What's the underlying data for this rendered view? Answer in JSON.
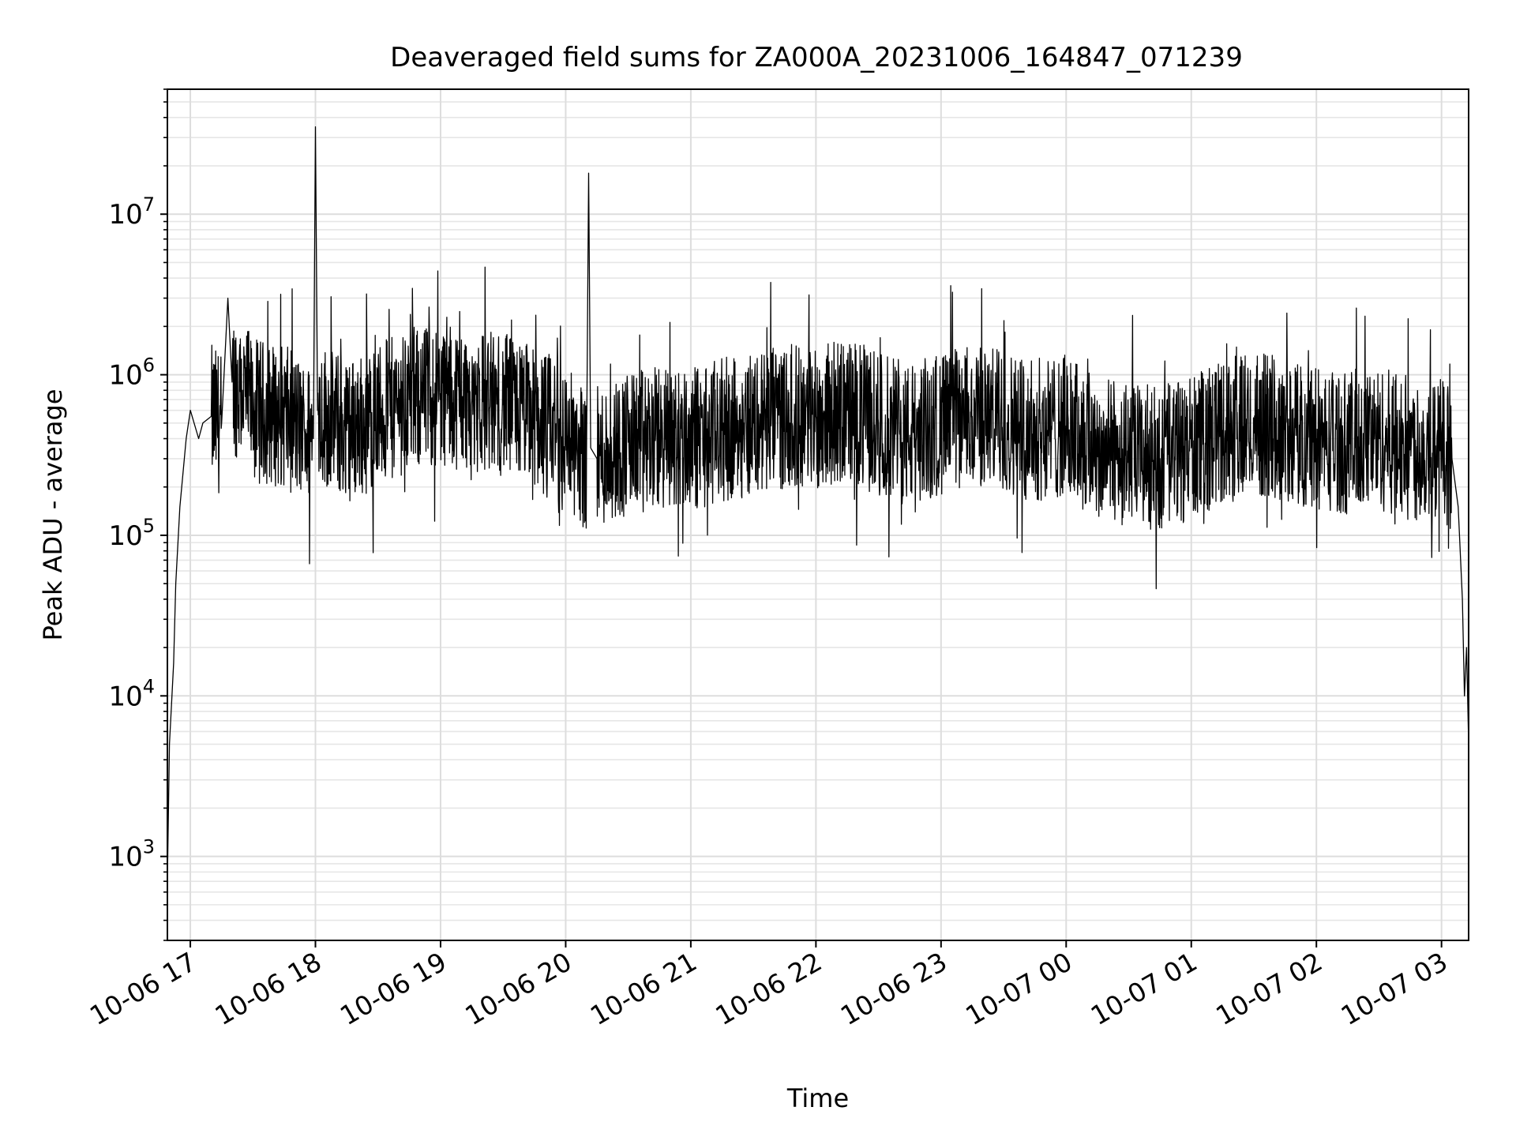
{
  "chart_data": {
    "type": "line",
    "title": "Deaveraged field sums for ZA000A_20231006_164847_071239",
    "xlabel": "Time",
    "ylabel": "Peak ADU - average",
    "yscale": "log",
    "ylim": [
      300,
      60000000
    ],
    "xlim": [
      "2023-10-06 16:49",
      "2023-10-07 03:13"
    ],
    "grid": "major and minor",
    "line_color": "#000000",
    "x_ticks": [
      {
        "label": "10-06 17",
        "time": "2023-10-06 17:00"
      },
      {
        "label": "10-06 18",
        "time": "2023-10-06 18:00"
      },
      {
        "label": "10-06 19",
        "time": "2023-10-06 19:00"
      },
      {
        "label": "10-06 20",
        "time": "2023-10-06 20:00"
      },
      {
        "label": "10-06 21",
        "time": "2023-10-06 21:00"
      },
      {
        "label": "10-06 22",
        "time": "2023-10-06 22:00"
      },
      {
        "label": "10-06 23",
        "time": "2023-10-06 23:00"
      },
      {
        "label": "10-07 00",
        "time": "2023-10-07 00:00"
      },
      {
        "label": "10-07 01",
        "time": "2023-10-07 01:00"
      },
      {
        "label": "10-07 02",
        "time": "2023-10-07 02:00"
      },
      {
        "label": "10-07 03",
        "time": "2023-10-07 03:00"
      }
    ],
    "y_ticks": [
      {
        "base": "10",
        "exp": "3",
        "value": 1000
      },
      {
        "base": "10",
        "exp": "4",
        "value": 10000
      },
      {
        "base": "10",
        "exp": "5",
        "value": 100000
      },
      {
        "base": "10",
        "exp": "6",
        "value": 1000000
      },
      {
        "base": "10",
        "exp": "7",
        "value": 10000000
      }
    ],
    "series": [
      {
        "x": [
          "2023-10-06 16:49",
          "2023-10-06 16:50",
          "2023-10-06 16:51",
          "2023-10-06 16:52",
          "2023-10-06 16:53",
          "2023-10-06 16:55",
          "2023-10-06 16:58",
          "2023-10-06 17:00",
          "2023-10-06 17:04",
          "2023-10-06 17:06",
          "2023-10-06 17:10",
          "2023-10-06 17:15",
          "2023-10-06 17:18",
          "2023-10-06 17:20",
          "2023-10-06 17:25",
          "2023-10-06 17:30",
          "2023-10-06 17:45",
          "2023-10-06 17:59",
          "2023-10-06 18:00",
          "2023-10-06 18:01",
          "2023-10-06 18:15",
          "2023-10-06 18:30",
          "2023-10-06 18:45",
          "2023-10-06 19:00",
          "2023-10-06 19:15",
          "2023-10-06 19:30",
          "2023-10-06 19:45",
          "2023-10-06 20:00",
          "2023-10-06 20:10",
          "2023-10-06 20:11",
          "2023-10-06 20:12",
          "2023-10-06 20:15",
          "2023-10-06 20:30",
          "2023-10-06 20:45",
          "2023-10-06 21:00",
          "2023-10-06 21:15",
          "2023-10-06 21:30",
          "2023-10-06 21:45",
          "2023-10-06 22:00",
          "2023-10-06 22:15",
          "2023-10-06 22:30",
          "2023-10-06 22:45",
          "2023-10-06 23:00",
          "2023-10-06 23:15",
          "2023-10-06 23:30",
          "2023-10-06 23:45",
          "2023-10-07 00:00",
          "2023-10-07 00:15",
          "2023-10-07 00:30",
          "2023-10-07 00:45",
          "2023-10-07 01:00",
          "2023-10-07 01:15",
          "2023-10-07 01:30",
          "2023-10-07 01:45",
          "2023-10-07 02:00",
          "2023-10-07 02:15",
          "2023-10-07 02:30",
          "2023-10-07 02:45",
          "2023-10-07 03:00",
          "2023-10-07 03:05",
          "2023-10-07 03:08",
          "2023-10-07 03:10",
          "2023-10-07 03:11",
          "2023-10-07 03:12",
          "2023-10-07 03:13"
        ],
        "values": [
          700,
          5000,
          9000,
          16000,
          50000,
          150000,
          400000,
          600000,
          400000,
          500000,
          550000,
          500000,
          3000000,
          900000,
          800000,
          600000,
          550000,
          400000,
          35000000,
          600000,
          450000,
          550000,
          700000,
          750000,
          700000,
          650000,
          550000,
          420000,
          300000,
          18000000,
          350000,
          300000,
          380000,
          400000,
          400000,
          450000,
          500000,
          550000,
          550000,
          600000,
          500000,
          420000,
          500000,
          550000,
          520000,
          450000,
          480000,
          350000,
          320000,
          300000,
          350000,
          450000,
          500000,
          450000,
          400000,
          380000,
          400000,
          350000,
          350000,
          300000,
          150000,
          40000,
          10000,
          20000,
          5000
        ]
      }
    ]
  }
}
